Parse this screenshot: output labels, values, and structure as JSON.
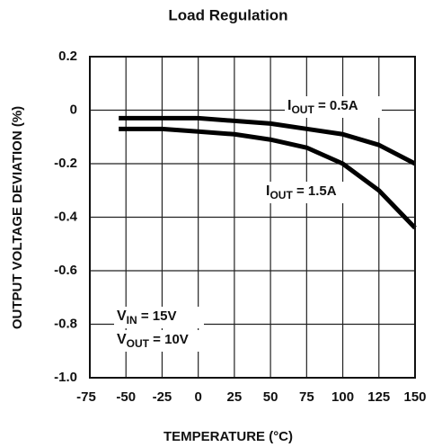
{
  "chart_data": {
    "type": "line",
    "title": "Load Regulation",
    "x_label": "TEMPERATURE (°C)",
    "y_label": "OUTPUT VOLTAGE DEVIATION (%)",
    "x": [
      -55,
      -25,
      0,
      25,
      50,
      75,
      100,
      125,
      150
    ],
    "series": [
      {
        "name": "IOUT = 0.5A",
        "color": "#000000",
        "values": [
          -0.03,
          -0.03,
          -0.03,
          -0.04,
          -0.05,
          -0.07,
          -0.09,
          -0.13,
          -0.2
        ]
      },
      {
        "name": "IOUT = 1.5A",
        "color": "#000000",
        "values": [
          -0.07,
          -0.07,
          -0.08,
          -0.09,
          -0.11,
          -0.14,
          -0.2,
          -0.3,
          -0.44
        ]
      }
    ],
    "annotations": [
      {
        "main": "I",
        "sub": "OUT",
        "rest": " = 0.5A"
      },
      {
        "main": "I",
        "sub": "OUT",
        "rest": " = 1.5A"
      },
      {
        "main": "V",
        "sub": "IN",
        "rest": " = 15V"
      },
      {
        "main": "V",
        "sub": "OUT",
        "rest": " = 10V"
      }
    ],
    "xlim": [
      -75,
      150
    ],
    "xticks": [
      -75,
      -50,
      -25,
      0,
      25,
      50,
      75,
      100,
      125,
      150
    ],
    "ylim": [
      -1,
      0.2
    ],
    "yticks": [
      0.2,
      0,
      -0.2,
      -0.4,
      -0.6,
      -0.8,
      {
        "value": -1,
        "label": "-1.0"
      }
    ],
    "grid": true
  }
}
